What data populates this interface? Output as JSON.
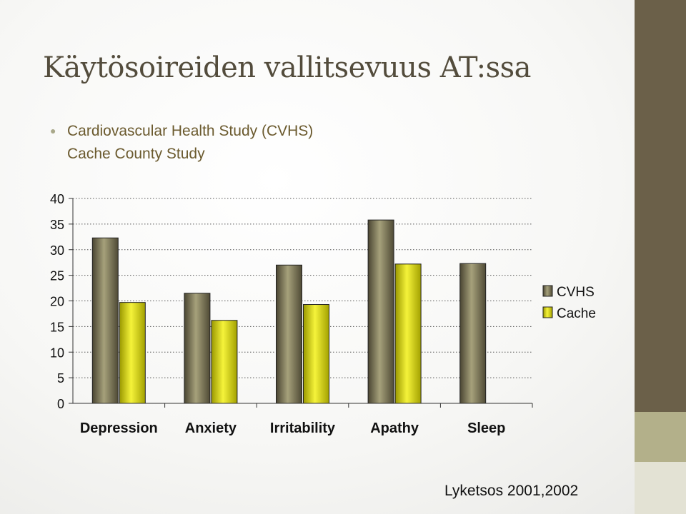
{
  "title": "Käytösoireiden vallitsevuus AT:ssa",
  "bullets": [
    "Cardiovascular Health Study (CVHS)",
    "Cache County Study"
  ],
  "credit": "Lyketsos 2001,2002",
  "chart_data": {
    "type": "bar",
    "categories": [
      "Depression",
      "Anxiety",
      "Irritability",
      "Apathy",
      "Sleep"
    ],
    "series": [
      {
        "name": "CVHS",
        "values": [
          32.3,
          21.5,
          27.0,
          35.8,
          27.3
        ],
        "color": "#6f6a4c"
      },
      {
        "name": "Cache",
        "values": [
          19.7,
          16.2,
          19.3,
          27.2,
          null
        ],
        "color": "#e8e60c"
      }
    ],
    "ylim": [
      0,
      40
    ],
    "yticks": [
      "0",
      "5",
      "10",
      "15",
      "20",
      "25",
      "30",
      "35",
      "40"
    ],
    "grid": true,
    "legend": "right"
  }
}
